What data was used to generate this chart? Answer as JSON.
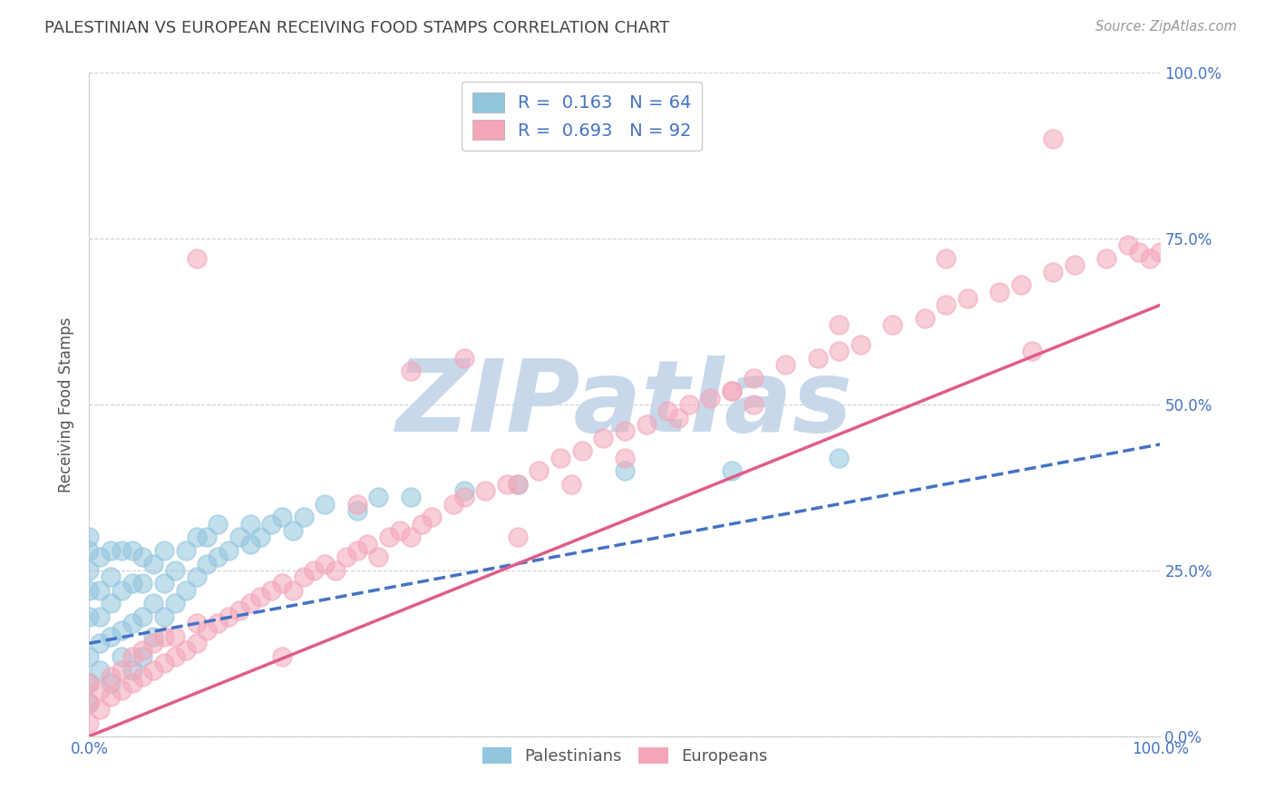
{
  "title": "PALESTINIAN VS EUROPEAN RECEIVING FOOD STAMPS CORRELATION CHART",
  "source": "Source: ZipAtlas.com",
  "ylabel": "Receiving Food Stamps",
  "xlim": [
    0,
    1
  ],
  "ylim": [
    0,
    1
  ],
  "xticks": [
    0,
    1.0
  ],
  "yticks": [
    0,
    0.25,
    0.5,
    0.75,
    1.0
  ],
  "xtick_labels": [
    "0.0%",
    "100.0%"
  ],
  "ytick_labels_right": [
    "0.0%",
    "25.0%",
    "50.0%",
    "75.0%",
    "100.0%"
  ],
  "blue_color": "#92c5de",
  "pink_color": "#f4a6b8",
  "blue_line_color": "#4472c4",
  "pink_line_color": "#e05c8a",
  "watermark_color": "#c8d8eb",
  "watermark_text": "ZIPatlas",
  "legend_label1": "Palestinians",
  "legend_label2": "Europeans",
  "blue_intercept": 0.14,
  "blue_slope": 0.3,
  "pink_intercept": 0.0,
  "pink_slope": 0.65,
  "blue_scatter_x": [
    0.0,
    0.0,
    0.0,
    0.0,
    0.0,
    0.0,
    0.0,
    0.0,
    0.01,
    0.01,
    0.01,
    0.01,
    0.01,
    0.02,
    0.02,
    0.02,
    0.02,
    0.02,
    0.03,
    0.03,
    0.03,
    0.03,
    0.04,
    0.04,
    0.04,
    0.04,
    0.05,
    0.05,
    0.05,
    0.05,
    0.06,
    0.06,
    0.06,
    0.07,
    0.07,
    0.07,
    0.08,
    0.08,
    0.09,
    0.09,
    0.1,
    0.1,
    0.11,
    0.11,
    0.12,
    0.12,
    0.13,
    0.14,
    0.15,
    0.15,
    0.16,
    0.17,
    0.18,
    0.19,
    0.2,
    0.22,
    0.25,
    0.27,
    0.3,
    0.35,
    0.4,
    0.5,
    0.6,
    0.7
  ],
  "blue_scatter_y": [
    0.05,
    0.08,
    0.12,
    0.18,
    0.22,
    0.25,
    0.28,
    0.3,
    0.1,
    0.14,
    0.18,
    0.22,
    0.27,
    0.08,
    0.15,
    0.2,
    0.24,
    0.28,
    0.12,
    0.16,
    0.22,
    0.28,
    0.1,
    0.17,
    0.23,
    0.28,
    0.12,
    0.18,
    0.23,
    0.27,
    0.15,
    0.2,
    0.26,
    0.18,
    0.23,
    0.28,
    0.2,
    0.25,
    0.22,
    0.28,
    0.24,
    0.3,
    0.26,
    0.3,
    0.27,
    0.32,
    0.28,
    0.3,
    0.29,
    0.32,
    0.3,
    0.32,
    0.33,
    0.31,
    0.33,
    0.35,
    0.34,
    0.36,
    0.36,
    0.37,
    0.38,
    0.4,
    0.4,
    0.42
  ],
  "pink_scatter_x": [
    0.0,
    0.0,
    0.0,
    0.01,
    0.01,
    0.02,
    0.02,
    0.03,
    0.03,
    0.04,
    0.04,
    0.05,
    0.05,
    0.06,
    0.06,
    0.07,
    0.07,
    0.08,
    0.08,
    0.09,
    0.1,
    0.1,
    0.11,
    0.12,
    0.13,
    0.14,
    0.15,
    0.16,
    0.17,
    0.18,
    0.19,
    0.2,
    0.21,
    0.22,
    0.23,
    0.24,
    0.25,
    0.26,
    0.27,
    0.28,
    0.29,
    0.3,
    0.31,
    0.32,
    0.34,
    0.35,
    0.37,
    0.39,
    0.4,
    0.42,
    0.44,
    0.46,
    0.48,
    0.5,
    0.52,
    0.54,
    0.56,
    0.58,
    0.6,
    0.62,
    0.65,
    0.68,
    0.7,
    0.72,
    0.75,
    0.78,
    0.8,
    0.82,
    0.85,
    0.87,
    0.88,
    0.9,
    0.92,
    0.95,
    0.97,
    0.98,
    0.99,
    1.0,
    0.3,
    0.35,
    0.1,
    0.55,
    0.62,
    0.25,
    0.18,
    0.4,
    0.45,
    0.5,
    0.6,
    0.7,
    0.8,
    0.9
  ],
  "pink_scatter_y": [
    0.02,
    0.05,
    0.08,
    0.04,
    0.07,
    0.06,
    0.09,
    0.07,
    0.1,
    0.08,
    0.12,
    0.09,
    0.13,
    0.1,
    0.14,
    0.11,
    0.15,
    0.12,
    0.15,
    0.13,
    0.14,
    0.17,
    0.16,
    0.17,
    0.18,
    0.19,
    0.2,
    0.21,
    0.22,
    0.23,
    0.22,
    0.24,
    0.25,
    0.26,
    0.25,
    0.27,
    0.28,
    0.29,
    0.27,
    0.3,
    0.31,
    0.3,
    0.32,
    0.33,
    0.35,
    0.36,
    0.37,
    0.38,
    0.38,
    0.4,
    0.42,
    0.43,
    0.45,
    0.46,
    0.47,
    0.49,
    0.5,
    0.51,
    0.52,
    0.54,
    0.56,
    0.57,
    0.58,
    0.59,
    0.62,
    0.63,
    0.65,
    0.66,
    0.67,
    0.68,
    0.58,
    0.7,
    0.71,
    0.72,
    0.74,
    0.73,
    0.72,
    0.73,
    0.55,
    0.57,
    0.72,
    0.48,
    0.5,
    0.35,
    0.12,
    0.3,
    0.38,
    0.42,
    0.52,
    0.62,
    0.72,
    0.9
  ],
  "background_color": "#ffffff",
  "grid_color": "#d0d0d0",
  "title_color": "#444444",
  "axis_label_color": "#555555",
  "tick_color_blue": "#4472c4",
  "tick_color_dark": "#444444"
}
